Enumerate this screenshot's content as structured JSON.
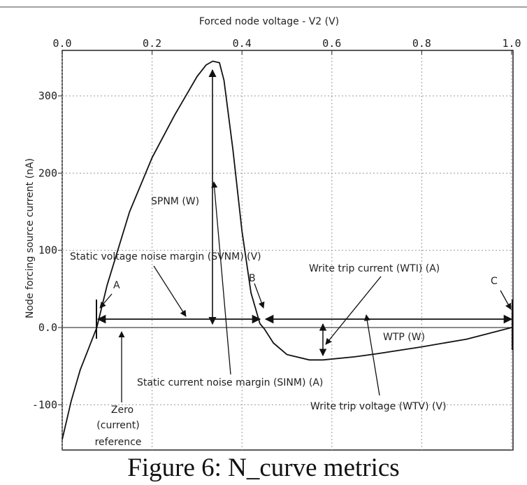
{
  "chart_data": {
    "type": "line",
    "title": "Forced node voltage - V2 (V)",
    "xlabel": "Forced node voltage - V2 (V)",
    "ylabel": "Node forcing source current (nA)",
    "xlim": [
      0.0,
      1.0
    ],
    "ylim": [
      -150,
      350
    ],
    "x_ticks": [
      "0.0",
      "0.2",
      "0.4",
      "0.6",
      "0.8",
      "1.0"
    ],
    "x_tick_values": [
      0.0,
      0.2,
      0.4,
      0.6,
      0.8,
      1.0
    ],
    "y_ticks": [
      "300",
      "200",
      "100",
      "0.0",
      "-100"
    ],
    "y_tick_values": [
      300,
      200,
      100,
      0,
      -100
    ],
    "grid": true,
    "series": [
      {
        "name": "N-curve",
        "x": [
          0.0,
          0.02,
          0.04,
          0.077,
          0.1,
          0.15,
          0.2,
          0.25,
          0.3,
          0.32,
          0.335,
          0.35,
          0.36,
          0.38,
          0.4,
          0.42,
          0.44,
          0.45,
          0.47,
          0.5,
          0.55,
          0.58,
          0.65,
          0.7,
          0.8,
          0.9,
          1.0
        ],
        "y": [
          -145,
          -95,
          -55,
          0,
          55,
          150,
          220,
          275,
          325,
          340,
          345,
          343,
          320,
          230,
          125,
          45,
          5,
          -2,
          -20,
          -35,
          -42,
          -42,
          -38,
          -34,
          -25,
          -15,
          0
        ]
      }
    ],
    "annotations": {
      "point_a": "A",
      "point_b": "B",
      "point_c": "C",
      "spnm": "SPNM (W)",
      "svnm": "Static voltage noise margin (SVNM) (V)",
      "wti": "Write trip current (WTI) (A)",
      "wtp": "WTP (W)",
      "sinm": "Static current noise margin (SINM) (A)",
      "wtv": "Write trip voltage (WTV) (V)",
      "zero_ref_line1": "Zero",
      "zero_ref_line2": "(current)",
      "zero_ref_line3": "reference"
    }
  },
  "caption": "Figure 6: N_curve metrics"
}
